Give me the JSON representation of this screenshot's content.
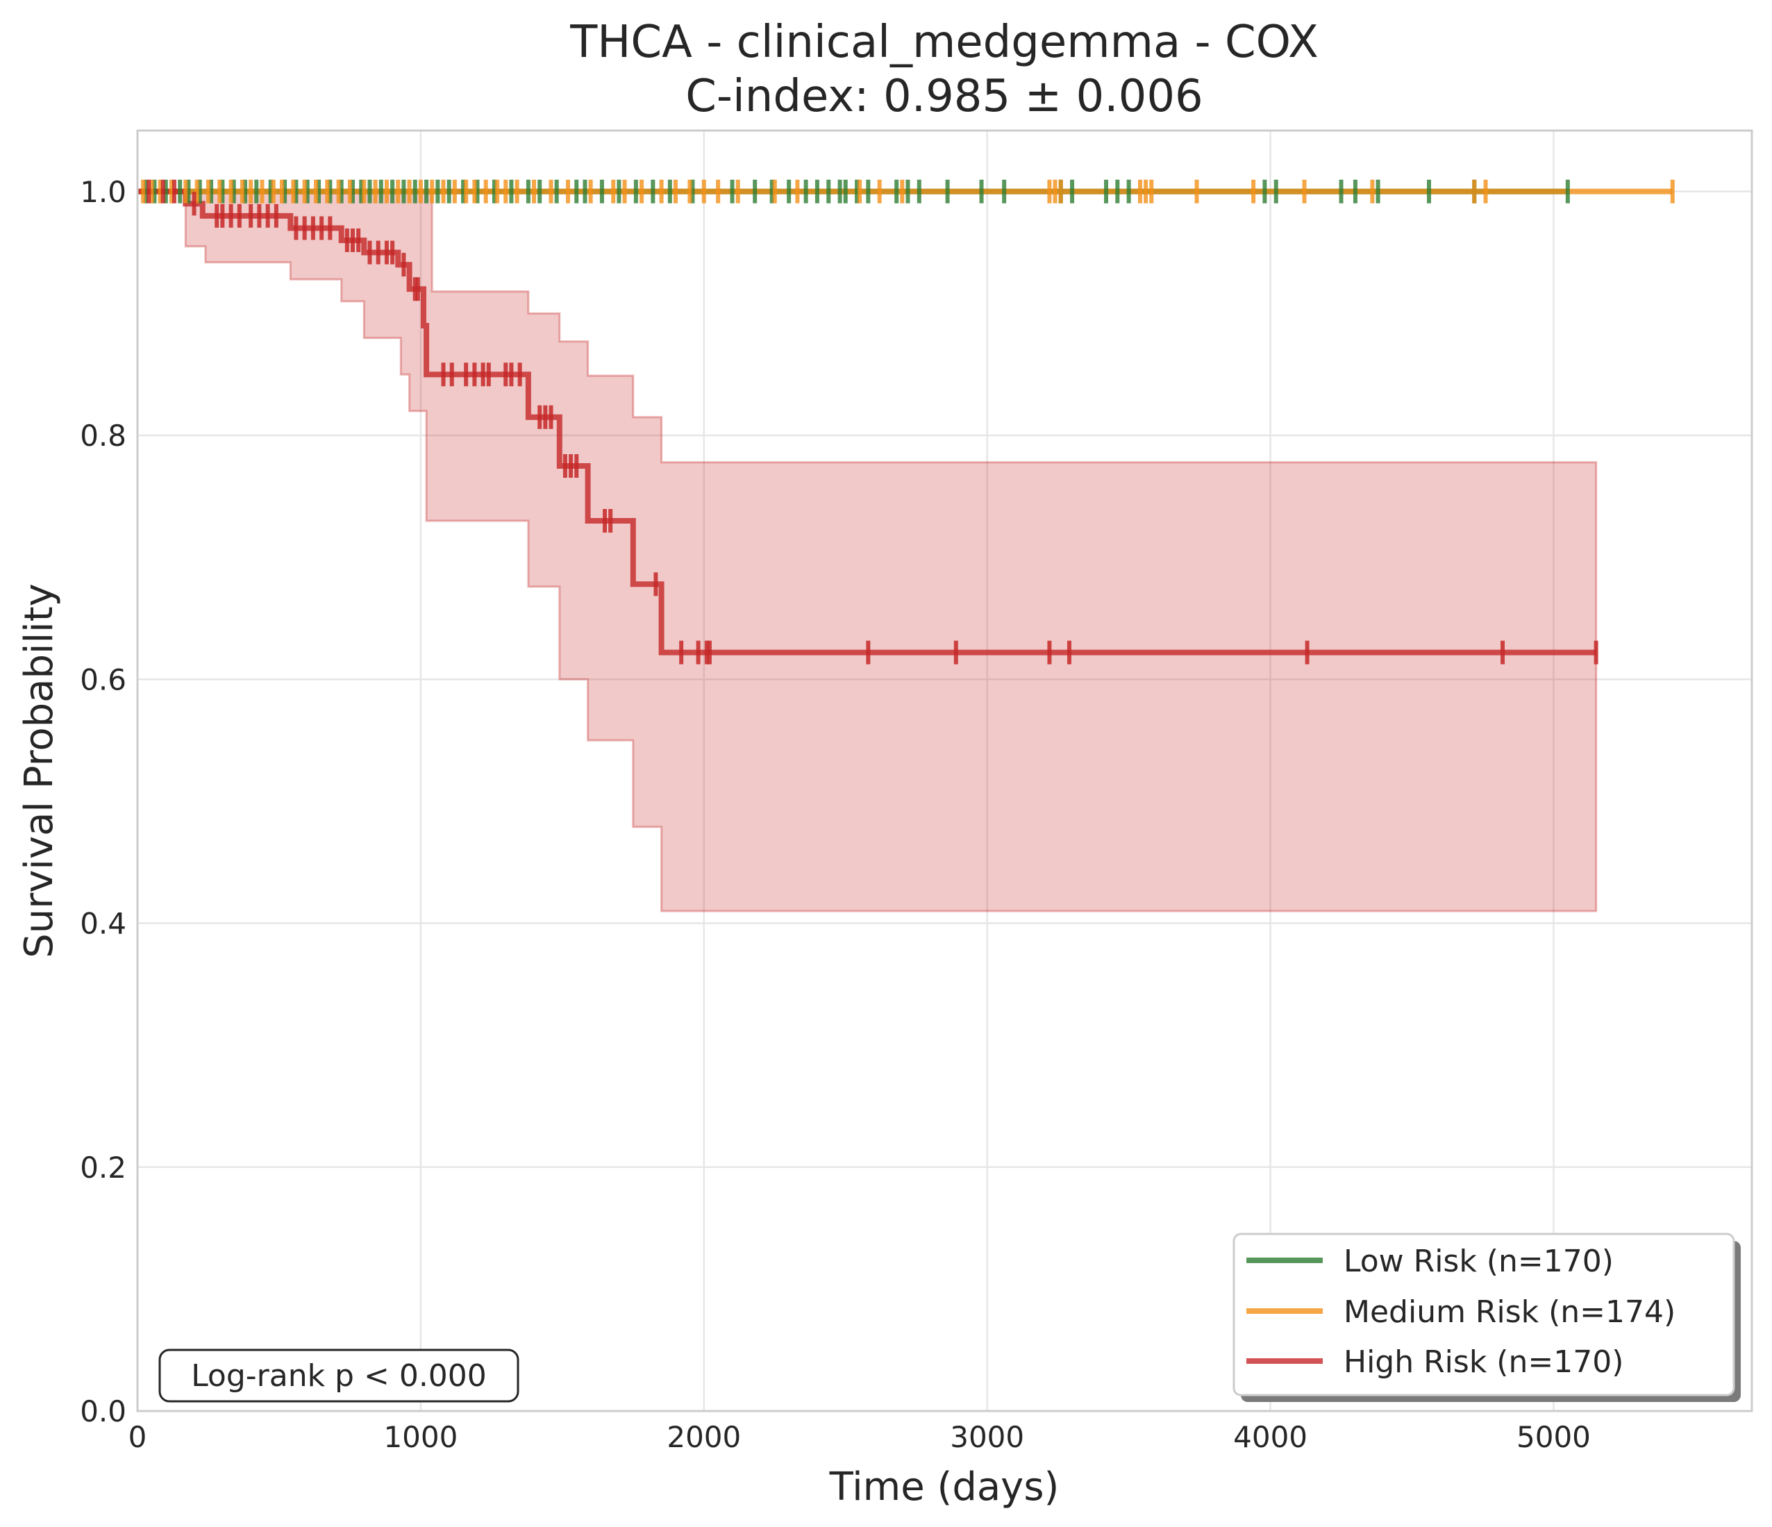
{
  "chart_data": {
    "type": "line",
    "title": "THCA - clinical_medgemma - COX",
    "subtitle": "C-index: 0.985 ± 0.006",
    "xlabel": "Time (days)",
    "ylabel": "Survival Probability",
    "xlim": [
      0,
      5700
    ],
    "ylim": [
      0,
      1.05
    ],
    "xticks": [
      0,
      1000,
      2000,
      3000,
      4000,
      5000
    ],
    "yticks": [
      0.0,
      0.2,
      0.4,
      0.6,
      0.8,
      1.0
    ],
    "xtick_labels": [
      "0",
      "1000",
      "2000",
      "3000",
      "4000",
      "5000"
    ],
    "ytick_labels": [
      "0.0",
      "0.2",
      "0.4",
      "0.6",
      "0.8",
      "1.0"
    ],
    "grid": true,
    "legend_position": "bottom-right",
    "annotation": "Log-rank p < 0.000",
    "series": [
      {
        "name": "Low Risk (n=170)",
        "color": "#2e7d32",
        "steps": [
          [
            0,
            1.0
          ],
          [
            5050,
            1.0
          ]
        ],
        "censor_times": [
          30,
          60,
          100,
          150,
          180,
          220,
          260,
          300,
          340,
          380,
          420,
          470,
          520,
          560,
          600,
          640,
          680,
          720,
          760,
          790,
          820,
          860,
          900,
          940,
          980,
          1020,
          1060,
          1100,
          1150,
          1200,
          1260,
          1320,
          1380,
          1420,
          1480,
          1550,
          1580,
          1640,
          1700,
          1760,
          1820,
          1880,
          1960,
          2100,
          2180,
          2240,
          2300,
          2360,
          2400,
          2440,
          2480,
          2500,
          2540,
          2580,
          2680,
          2720,
          2760,
          2860,
          2980,
          3060,
          3260,
          3300,
          3420,
          3460,
          3500,
          3980,
          4020,
          4250,
          4300,
          4380,
          4560,
          4720,
          5050
        ]
      },
      {
        "name": "Medium Risk (n=174)",
        "color": "#f39018",
        "steps": [
          [
            0,
            1.0
          ],
          [
            5420,
            1.0
          ]
        ],
        "censor_times": [
          20,
          50,
          80,
          120,
          170,
          210,
          250,
          290,
          330,
          370,
          400,
          440,
          480,
          510,
          550,
          590,
          630,
          670,
          710,
          750,
          800,
          840,
          880,
          920,
          960,
          1000,
          1040,
          1080,
          1120,
          1160,
          1190,
          1230,
          1270,
          1300,
          1340,
          1400,
          1460,
          1520,
          1600,
          1680,
          1720,
          1780,
          1850,
          1900,
          1950,
          2000,
          2050,
          2120,
          2250,
          2330,
          2550,
          2620,
          2700,
          3220,
          3240,
          3260,
          3540,
          3560,
          3580,
          3740,
          3940,
          4120,
          4360,
          4720,
          4760,
          5420
        ]
      },
      {
        "name": "High Risk (n=170)",
        "color": "#c62828",
        "steps": [
          [
            0,
            1.0
          ],
          [
            170,
            1.0
          ],
          [
            170,
            0.99
          ],
          [
            230,
            0.99
          ],
          [
            230,
            0.98
          ],
          [
            540,
            0.98
          ],
          [
            540,
            0.97
          ],
          [
            720,
            0.97
          ],
          [
            720,
            0.96
          ],
          [
            800,
            0.96
          ],
          [
            800,
            0.95
          ],
          [
            920,
            0.95
          ],
          [
            920,
            0.94
          ],
          [
            960,
            0.94
          ],
          [
            960,
            0.92
          ],
          [
            1010,
            0.92
          ],
          [
            1010,
            0.89
          ],
          [
            1020,
            0.89
          ],
          [
            1020,
            0.85
          ],
          [
            1380,
            0.85
          ],
          [
            1380,
            0.815
          ],
          [
            1490,
            0.815
          ],
          [
            1490,
            0.775
          ],
          [
            1590,
            0.775
          ],
          [
            1590,
            0.73
          ],
          [
            1750,
            0.73
          ],
          [
            1750,
            0.678
          ],
          [
            1850,
            0.678
          ],
          [
            1850,
            0.622
          ],
          [
            5150,
            0.622
          ]
        ],
        "ci_upper": [
          [
            0,
            1.0
          ],
          [
            1040,
            1.0
          ],
          [
            1040,
            0.918
          ],
          [
            1380,
            0.918
          ],
          [
            1380,
            0.9
          ],
          [
            1490,
            0.9
          ],
          [
            1490,
            0.877
          ],
          [
            1590,
            0.877
          ],
          [
            1590,
            0.849
          ],
          [
            1750,
            0.849
          ],
          [
            1750,
            0.815
          ],
          [
            1850,
            0.815
          ],
          [
            1850,
            0.778
          ],
          [
            5150,
            0.778
          ]
        ],
        "ci_lower": [
          [
            170,
            1.0
          ],
          [
            170,
            0.955
          ],
          [
            240,
            0.955
          ],
          [
            240,
            0.942
          ],
          [
            540,
            0.942
          ],
          [
            540,
            0.928
          ],
          [
            720,
            0.928
          ],
          [
            720,
            0.91
          ],
          [
            800,
            0.91
          ],
          [
            800,
            0.88
          ],
          [
            930,
            0.88
          ],
          [
            930,
            0.85
          ],
          [
            960,
            0.85
          ],
          [
            960,
            0.82
          ],
          [
            1020,
            0.82
          ],
          [
            1020,
            0.73
          ],
          [
            1380,
            0.73
          ],
          [
            1380,
            0.676
          ],
          [
            1490,
            0.676
          ],
          [
            1490,
            0.6
          ],
          [
            1590,
            0.6
          ],
          [
            1590,
            0.55
          ],
          [
            1750,
            0.55
          ],
          [
            1750,
            0.479
          ],
          [
            1850,
            0.479
          ],
          [
            1850,
            0.41
          ],
          [
            5150,
            0.41
          ]
        ],
        "censor_points": [
          [
            40,
            1.0
          ],
          [
            90,
            1.0
          ],
          [
            130,
            1.0
          ],
          [
            200,
            0.99
          ],
          [
            280,
            0.98
          ],
          [
            300,
            0.98
          ],
          [
            330,
            0.98
          ],
          [
            360,
            0.98
          ],
          [
            400,
            0.98
          ],
          [
            430,
            0.98
          ],
          [
            460,
            0.98
          ],
          [
            490,
            0.98
          ],
          [
            560,
            0.97
          ],
          [
            590,
            0.97
          ],
          [
            620,
            0.97
          ],
          [
            650,
            0.97
          ],
          [
            680,
            0.97
          ],
          [
            740,
            0.96
          ],
          [
            760,
            0.96
          ],
          [
            780,
            0.96
          ],
          [
            820,
            0.95
          ],
          [
            850,
            0.95
          ],
          [
            880,
            0.95
          ],
          [
            900,
            0.95
          ],
          [
            940,
            0.94
          ],
          [
            980,
            0.92
          ],
          [
            990,
            0.92
          ],
          [
            1080,
            0.85
          ],
          [
            1110,
            0.85
          ],
          [
            1160,
            0.85
          ],
          [
            1190,
            0.85
          ],
          [
            1220,
            0.85
          ],
          [
            1240,
            0.85
          ],
          [
            1300,
            0.85
          ],
          [
            1320,
            0.85
          ],
          [
            1350,
            0.85
          ],
          [
            1420,
            0.815
          ],
          [
            1440,
            0.815
          ],
          [
            1460,
            0.815
          ],
          [
            1510,
            0.775
          ],
          [
            1530,
            0.775
          ],
          [
            1550,
            0.775
          ],
          [
            1650,
            0.73
          ],
          [
            1670,
            0.73
          ],
          [
            1830,
            0.678
          ],
          [
            1920,
            0.622
          ],
          [
            1980,
            0.622
          ],
          [
            2010,
            0.622
          ],
          [
            2020,
            0.622
          ],
          [
            2580,
            0.622
          ],
          [
            2890,
            0.622
          ],
          [
            3220,
            0.622
          ],
          [
            3290,
            0.622
          ],
          [
            4130,
            0.622
          ],
          [
            4820,
            0.622
          ],
          [
            5150,
            0.622
          ]
        ]
      }
    ]
  }
}
